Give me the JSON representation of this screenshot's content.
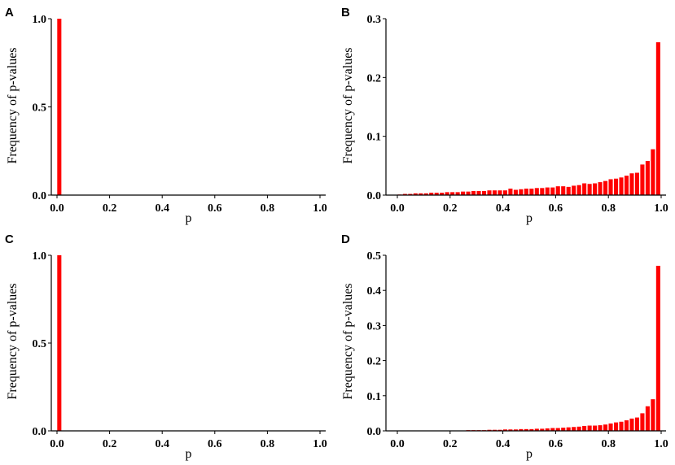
{
  "bar_color": "#ff0000",
  "chart_data": [
    {
      "panel": "A",
      "type": "bar",
      "xlabel": "p",
      "ylabel": "Frequency of p-values",
      "xlim": [
        0,
        1
      ],
      "ylim": [
        0,
        1
      ],
      "xticks": [
        "0.0",
        "0.2",
        "0.4",
        "0.6",
        "0.8",
        "1.0"
      ],
      "yticks": [
        "0.0",
        "0.5",
        "1.0"
      ],
      "bin_width": 0.02,
      "x": [
        0.0
      ],
      "values": [
        1.0
      ]
    },
    {
      "panel": "B",
      "type": "bar",
      "xlabel": "p",
      "ylabel": "Frequency of p-values",
      "xlim": [
        0,
        1
      ],
      "ylim": [
        0,
        0.3
      ],
      "xticks": [
        "0.0",
        "0.2",
        "0.4",
        "0.6",
        "0.8",
        "1.0"
      ],
      "yticks": [
        "0.0",
        "0.1",
        "0.2",
        "0.3"
      ],
      "bin_width": 0.02,
      "x": [
        0.0,
        0.02,
        0.04,
        0.06,
        0.08,
        0.1,
        0.12,
        0.14,
        0.16,
        0.18,
        0.2,
        0.22,
        0.24,
        0.26,
        0.28,
        0.3,
        0.32,
        0.34,
        0.36,
        0.38,
        0.4,
        0.42,
        0.44,
        0.46,
        0.48,
        0.5,
        0.52,
        0.54,
        0.56,
        0.58,
        0.6,
        0.62,
        0.64,
        0.66,
        0.68,
        0.7,
        0.72,
        0.74,
        0.76,
        0.78,
        0.8,
        0.82,
        0.84,
        0.86,
        0.88,
        0.9,
        0.92,
        0.94,
        0.96,
        0.98
      ],
      "values": [
        0.001,
        0.002,
        0.002,
        0.003,
        0.003,
        0.003,
        0.004,
        0.004,
        0.004,
        0.005,
        0.005,
        0.005,
        0.006,
        0.006,
        0.007,
        0.007,
        0.007,
        0.008,
        0.008,
        0.008,
        0.008,
        0.011,
        0.009,
        0.01,
        0.011,
        0.011,
        0.012,
        0.012,
        0.013,
        0.013,
        0.015,
        0.015,
        0.014,
        0.016,
        0.017,
        0.02,
        0.019,
        0.02,
        0.022,
        0.024,
        0.027,
        0.028,
        0.03,
        0.033,
        0.037,
        0.038,
        0.052,
        0.058,
        0.078,
        0.26
      ]
    },
    {
      "panel": "C",
      "type": "bar",
      "xlabel": "p",
      "ylabel": "Frequency of p-values",
      "xlim": [
        0,
        1
      ],
      "ylim": [
        0,
        1
      ],
      "xticks": [
        "0.0",
        "0.2",
        "0.4",
        "0.6",
        "0.8",
        "1.0"
      ],
      "yticks": [
        "0.0",
        "0.5",
        "1.0"
      ],
      "bin_width": 0.02,
      "x": [
        0.0
      ],
      "values": [
        1.0
      ]
    },
    {
      "panel": "D",
      "type": "bar",
      "xlabel": "p",
      "ylabel": "Frequency of p-values",
      "xlim": [
        0,
        1
      ],
      "ylim": [
        0,
        0.5
      ],
      "xticks": [
        "0.0",
        "0.2",
        "0.4",
        "0.6",
        "0.8",
        "1.0"
      ],
      "yticks": [
        "0.0",
        "0.1",
        "0.2",
        "0.3",
        "0.4",
        "0.5"
      ],
      "bin_width": 0.02,
      "x": [
        0.0,
        0.02,
        0.04,
        0.06,
        0.08,
        0.1,
        0.12,
        0.14,
        0.16,
        0.18,
        0.2,
        0.22,
        0.24,
        0.26,
        0.28,
        0.3,
        0.32,
        0.34,
        0.36,
        0.38,
        0.4,
        0.42,
        0.44,
        0.46,
        0.48,
        0.5,
        0.52,
        0.54,
        0.56,
        0.58,
        0.6,
        0.62,
        0.64,
        0.66,
        0.68,
        0.7,
        0.72,
        0.74,
        0.76,
        0.78,
        0.8,
        0.82,
        0.84,
        0.86,
        0.88,
        0.9,
        0.92,
        0.94,
        0.96,
        0.98
      ],
      "values": [
        0.0,
        0.0,
        0.0,
        0.0,
        0.0,
        0.0005,
        0.0005,
        0.0005,
        0.0005,
        0.001,
        0.001,
        0.001,
        0.001,
        0.002,
        0.002,
        0.002,
        0.002,
        0.003,
        0.003,
        0.003,
        0.004,
        0.004,
        0.004,
        0.005,
        0.005,
        0.005,
        0.006,
        0.006,
        0.007,
        0.008,
        0.008,
        0.009,
        0.01,
        0.011,
        0.012,
        0.014,
        0.015,
        0.015,
        0.016,
        0.018,
        0.021,
        0.024,
        0.026,
        0.03,
        0.035,
        0.038,
        0.05,
        0.07,
        0.09,
        0.47
      ]
    }
  ]
}
